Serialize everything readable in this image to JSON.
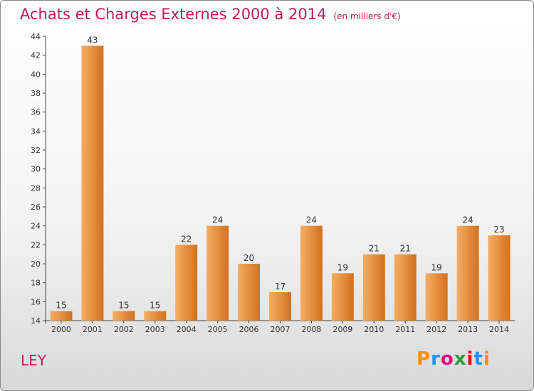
{
  "header": {
    "title": "Achats et Charges Externes 2000 à 2014",
    "subtitle": "(en milliers d'€)"
  },
  "footer": {
    "place": "LEY",
    "logo_text": "Proxiti",
    "logo_colors": [
      "#ff8c00",
      "#1e90ff",
      "#e5007e",
      "#2e9b3e",
      "#ff0000",
      "#1e90ff",
      "#ff8c00"
    ]
  },
  "colors": {
    "bar_light": "#f6ad62",
    "bar_dark": "#d2711f",
    "title": "#c2185b",
    "axis": "#444444"
  },
  "chart_data": {
    "type": "bar",
    "title": "Achats et Charges Externes 2000 à 2014",
    "subtitle": "(en milliers d'€)",
    "categories": [
      "2000",
      "2001",
      "2002",
      "2003",
      "2004",
      "2005",
      "2006",
      "2007",
      "2008",
      "2009",
      "2010",
      "2011",
      "2012",
      "2013",
      "2014"
    ],
    "values": [
      15,
      43,
      15,
      15,
      22,
      24,
      20,
      17,
      24,
      19,
      21,
      21,
      19,
      24,
      23
    ],
    "ylim": [
      14,
      44
    ],
    "yticks": [
      14,
      16,
      18,
      20,
      22,
      24,
      26,
      28,
      30,
      32,
      34,
      36,
      38,
      40,
      42,
      44
    ],
    "grid": false,
    "xlabel": "",
    "ylabel": ""
  }
}
